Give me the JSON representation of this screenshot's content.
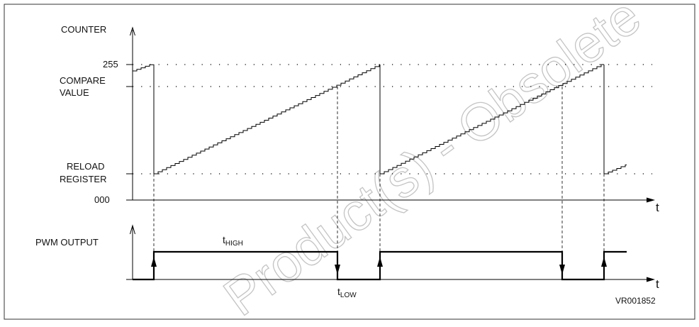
{
  "labels": {
    "counter": "COUNTER",
    "max_value": "255",
    "compare_line1": "COMPARE",
    "compare_line2": "VALUE",
    "reload_line1": "RELOAD",
    "reload_line2": "REGISTER",
    "zero_value": "000",
    "pwm_output": "PWM OUTPUT",
    "time_axis_upper": "t",
    "time_axis_lower": "t",
    "t_high_main": "t",
    "t_high_sub": "HIGH",
    "t_low_main": "t",
    "t_low_sub": "LOW",
    "figure_code": "VR001852"
  },
  "watermark": "Product(s) - Obsolete",
  "colors": {
    "line": "#000000",
    "watermark": "#c4c4c4",
    "frame": "#333333"
  }
}
